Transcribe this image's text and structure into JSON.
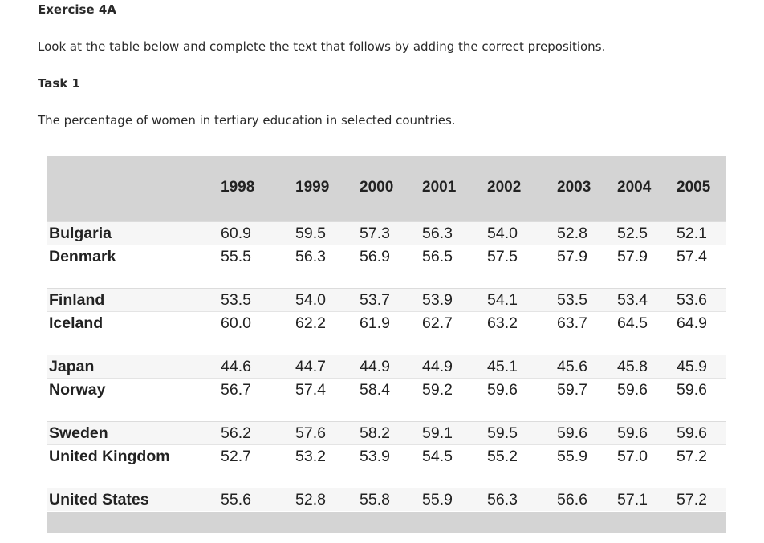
{
  "heading": "Exercise 4A",
  "instruction": "Look at the table below and complete the text that follows by adding the correct prepositions.",
  "task": "Task 1",
  "caption": "The percentage of women in tertiary education in selected countries.",
  "table": {
    "years": [
      "1998",
      "1999",
      "2000",
      "2001",
      "2002",
      "2003",
      "2004",
      "2005"
    ],
    "rows": [
      {
        "country": "Bulgaria",
        "values": [
          "60.9",
          "59.5",
          "57.3",
          "56.3",
          "54.0",
          "52.8",
          "52.5",
          "52.1"
        ]
      },
      {
        "country": "Denmark",
        "values": [
          "55.5",
          "56.3",
          "56.9",
          "56.5",
          "57.5",
          "57.9",
          "57.9",
          "57.4"
        ]
      },
      {
        "country": "Finland",
        "values": [
          "53.5",
          "54.0",
          "53.7",
          "53.9",
          "54.1",
          "53.5",
          "53.4",
          "53.6"
        ]
      },
      {
        "country": "Iceland",
        "values": [
          "60.0",
          "62.2",
          "61.9",
          "62.7",
          "63.2",
          "63.7",
          "64.5",
          "64.9"
        ]
      },
      {
        "country": "Japan",
        "values": [
          "44.6",
          "44.7",
          "44.9",
          "44.9",
          "45.1",
          "45.6",
          "45.8",
          "45.9"
        ]
      },
      {
        "country": "Norway",
        "values": [
          "56.7",
          "57.4",
          "58.4",
          "59.2",
          "59.6",
          "59.7",
          "59.6",
          "59.6"
        ]
      },
      {
        "country": "Sweden",
        "values": [
          "56.2",
          "57.6",
          "58.2",
          "59.1",
          "59.5",
          "59.6",
          "59.6",
          "59.6"
        ]
      },
      {
        "country": "United Kingdom",
        "values": [
          "52.7",
          "53.2",
          "53.9",
          "54.5",
          "55.2",
          "55.9",
          "57.0",
          "57.2"
        ]
      },
      {
        "country": "United States",
        "values": [
          "55.6",
          "52.8",
          "55.8",
          "55.9",
          "56.3",
          "56.6",
          "57.1",
          "57.2"
        ]
      }
    ]
  }
}
